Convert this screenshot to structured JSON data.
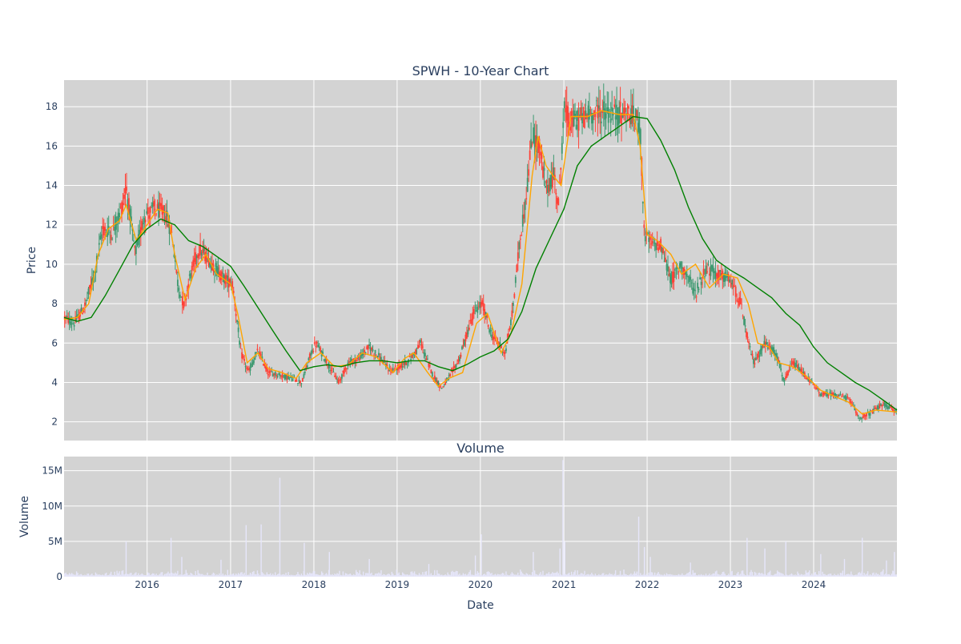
{
  "chart_data": [
    {
      "type": "candlestick",
      "title": "SPWH - 10-Year Chart",
      "xlabel": "",
      "ylabel": "Price",
      "ylim": [
        1.05,
        19.35
      ],
      "yticks": [
        2,
        4,
        6,
        8,
        10,
        12,
        14,
        16,
        18
      ],
      "grid": true,
      "legend": "none",
      "colors": {
        "plot_bg": "#d3d3d3",
        "grid": "#ffffff",
        "up": "#3d9970",
        "down": "#ff4136",
        "ma_short": "#ffa500",
        "ma_long": "#008000"
      },
      "price_trend": {
        "x": [
          "2015-01-02",
          "2015-02-15",
          "2015-04-01",
          "2015-05-15",
          "2015-06-20",
          "2015-08-01",
          "2015-09-15",
          "2015-10-01",
          "2015-11-10",
          "2015-12-20",
          "2016-02-01",
          "2016-03-20",
          "2016-04-20",
          "2016-05-15",
          "2016-06-10",
          "2016-07-10",
          "2016-08-15",
          "2016-10-01",
          "2016-12-01",
          "2017-01-10",
          "2017-02-15",
          "2017-03-20",
          "2017-05-01",
          "2017-06-15",
          "2017-08-01",
          "2017-10-01",
          "2017-11-10",
          "2017-12-20",
          "2018-01-10",
          "2018-03-01",
          "2018-04-20",
          "2018-06-01",
          "2018-07-15",
          "2018-09-01",
          "2018-10-15",
          "2018-12-01",
          "2019-01-15",
          "2019-03-01",
          "2019-04-15",
          "2019-06-01",
          "2019-07-15",
          "2019-08-20",
          "2019-10-01",
          "2019-12-01",
          "2020-01-10",
          "2020-02-15",
          "2020-03-20",
          "2020-04-20",
          "2020-05-20",
          "2020-06-20",
          "2020-07-20",
          "2020-08-15",
          "2020-09-15",
          "2020-10-15",
          "2020-11-20",
          "2020-12-10",
          "2020-12-31",
          "2021-02-01",
          "2021-04-01",
          "2021-06-01",
          "2021-08-01",
          "2021-10-01",
          "2021-11-20",
          "2021-12-01",
          "2021-12-20",
          "2022-01-20",
          "2022-03-01",
          "2022-04-15",
          "2022-06-01",
          "2022-08-01",
          "2022-09-15",
          "2022-11-01",
          "2023-01-01",
          "2023-02-15",
          "2023-03-20",
          "2023-04-15",
          "2023-06-01",
          "2023-07-20",
          "2023-08-25",
          "2023-10-01",
          "2023-12-01",
          "2024-02-01",
          "2024-04-01",
          "2024-06-01",
          "2024-07-20",
          "2024-09-01",
          "2024-11-01",
          "2024-12-31"
        ],
        "y": [
          7.3,
          7.0,
          7.8,
          9.5,
          11.8,
          11.6,
          13.0,
          14.0,
          10.5,
          12.5,
          12.8,
          12.6,
          11.5,
          9.0,
          7.9,
          9.5,
          10.8,
          10.2,
          9.3,
          9.0,
          5.5,
          4.5,
          5.6,
          4.5,
          4.4,
          4.2,
          4.0,
          5.5,
          6.0,
          5.0,
          4.0,
          5.0,
          5.2,
          5.8,
          5.3,
          4.6,
          4.8,
          5.2,
          6.0,
          4.5,
          3.7,
          4.3,
          5.2,
          7.5,
          8.0,
          6.5,
          6.0,
          5.5,
          7.5,
          11.0,
          13.5,
          16.5,
          16.0,
          13.8,
          14.5,
          13.0,
          17.8,
          17.2,
          17.5,
          17.8,
          17.6,
          17.7,
          17.3,
          17.0,
          11.5,
          11.0,
          11.0,
          9.2,
          10.0,
          8.5,
          9.8,
          9.5,
          9.2,
          8.0,
          6.0,
          5.0,
          6.0,
          5.5,
          4.0,
          5.0,
          4.3,
          3.4,
          3.4,
          3.2,
          2.2,
          2.4,
          2.9,
          2.5
        ]
      },
      "moving_averages": [
        {
          "color": "orange",
          "x": [
            "2015-01-02",
            "2015-03-01",
            "2015-04-20",
            "2015-06-01",
            "2015-07-15",
            "2015-09-01",
            "2015-10-01",
            "2015-11-15",
            "2016-01-01",
            "2016-02-15",
            "2016-04-01",
            "2016-05-01",
            "2016-06-15",
            "2016-08-01",
            "2016-09-15",
            "2016-11-01",
            "2017-01-01",
            "2017-02-01",
            "2017-03-15",
            "2017-05-01",
            "2017-06-15",
            "2017-08-15",
            "2017-10-15",
            "2017-12-01",
            "2018-02-01",
            "2018-04-01",
            "2018-06-01",
            "2018-08-01",
            "2018-10-01",
            "2018-12-15",
            "2019-02-01",
            "2019-03-15",
            "2019-05-15",
            "2019-07-01",
            "2019-08-15",
            "2019-10-15",
            "2019-12-15",
            "2020-02-01",
            "2020-04-01",
            "2020-05-15",
            "2020-07-01",
            "2020-08-15",
            "2020-09-10",
            "2020-10-15",
            "2020-11-15",
            "2020-12-20",
            "2021-02-01",
            "2021-04-15",
            "2021-06-15",
            "2021-09-01",
            "2021-11-01",
            "2021-12-01",
            "2022-01-01",
            "2022-02-15",
            "2022-04-15",
            "2022-06-01",
            "2022-08-01",
            "2022-10-01",
            "2022-12-01",
            "2023-02-01",
            "2023-03-20",
            "2023-05-01",
            "2023-06-20",
            "2023-08-01",
            "2023-10-01",
            "2023-12-01",
            "2024-02-01",
            "2024-04-01",
            "2024-06-01",
            "2024-08-01",
            "2024-10-01",
            "2024-12-31"
          ],
          "y": [
            7.2,
            7.3,
            8.0,
            10.5,
            11.8,
            12.2,
            13.0,
            11.2,
            12.0,
            12.8,
            12.6,
            10.5,
            8.2,
            9.8,
            10.5,
            9.5,
            9.0,
            7.5,
            5.0,
            5.5,
            4.7,
            4.5,
            4.2,
            5.0,
            5.5,
            4.8,
            4.9,
            5.5,
            5.3,
            4.5,
            5.2,
            5.5,
            4.5,
            3.8,
            4.2,
            4.5,
            7.0,
            7.5,
            5.5,
            6.5,
            9.0,
            14.5,
            16.5,
            15.0,
            14.5,
            14.0,
            17.5,
            17.5,
            17.8,
            17.6,
            17.6,
            16.0,
            11.5,
            11.2,
            10.5,
            9.5,
            10.0,
            8.8,
            9.5,
            9.3,
            8.0,
            6.0,
            5.8,
            5.0,
            4.8,
            4.3,
            3.6,
            3.3,
            3.0,
            2.4,
            2.6,
            2.5
          ]
        },
        {
          "color": "green",
          "x": [
            "2015-01-02",
            "2015-03-01",
            "2015-05-01",
            "2015-07-01",
            "2015-09-01",
            "2015-11-01",
            "2016-01-01",
            "2016-03-01",
            "2016-05-01",
            "2016-07-01",
            "2016-09-01",
            "2016-11-01",
            "2017-01-01",
            "2017-03-01",
            "2017-05-01",
            "2017-07-01",
            "2017-09-01",
            "2017-11-01",
            "2018-01-01",
            "2018-03-01",
            "2018-05-01",
            "2018-07-01",
            "2018-09-01",
            "2018-11-01",
            "2019-01-01",
            "2019-03-01",
            "2019-05-01",
            "2019-07-01",
            "2019-09-01",
            "2019-11-01",
            "2020-01-01",
            "2020-03-01",
            "2020-05-01",
            "2020-07-01",
            "2020-09-01",
            "2020-11-01",
            "2021-01-01",
            "2021-03-01",
            "2021-05-01",
            "2021-07-01",
            "2021-09-01",
            "2021-11-01",
            "2022-01-01",
            "2022-03-01",
            "2022-05-01",
            "2022-07-01",
            "2022-09-01",
            "2022-11-01",
            "2023-01-01",
            "2023-03-01",
            "2023-05-01",
            "2023-07-01",
            "2023-09-01",
            "2023-11-01",
            "2024-01-01",
            "2024-03-01",
            "2024-05-01",
            "2024-07-01",
            "2024-09-01",
            "2024-11-01",
            "2024-12-31"
          ],
          "y": [
            7.3,
            7.1,
            7.3,
            8.4,
            9.7,
            11.0,
            11.8,
            12.3,
            12.0,
            11.2,
            10.9,
            10.4,
            9.9,
            8.9,
            7.8,
            6.7,
            5.6,
            4.6,
            4.8,
            4.9,
            4.8,
            5.0,
            5.1,
            5.1,
            5.0,
            5.1,
            5.1,
            4.8,
            4.6,
            4.9,
            5.3,
            5.6,
            6.2,
            7.6,
            9.8,
            11.3,
            12.8,
            15.0,
            16.0,
            16.5,
            17.0,
            17.5,
            17.4,
            16.3,
            14.8,
            12.9,
            11.3,
            10.2,
            9.7,
            9.3,
            8.8,
            8.3,
            7.5,
            6.9,
            5.8,
            5.0,
            4.5,
            4.0,
            3.6,
            3.1,
            2.6
          ]
        }
      ]
    },
    {
      "type": "bar",
      "title": "Volume",
      "xlabel": "Date",
      "ylabel": "Volume",
      "ylim": [
        0,
        17000000
      ],
      "yticks": [
        0,
        5000000,
        10000000,
        15000000
      ],
      "ytick_labels": [
        "0",
        "5M",
        "10M",
        "15M"
      ],
      "xticks": [
        "2016-01-01",
        "2017-01-01",
        "2018-01-01",
        "2019-01-01",
        "2020-01-01",
        "2021-01-01",
        "2022-01-01",
        "2023-01-01",
        "2024-01-01"
      ],
      "xtick_labels": [
        "2016",
        "2017",
        "2018",
        "2019",
        "2020",
        "2021",
        "2022",
        "2023",
        "2024"
      ],
      "xlim": [
        "2015-01-02",
        "2024-12-31"
      ],
      "bar_color": "#e6e6fa",
      "spikes": [
        {
          "x": "2015-10-01",
          "v": 5000000
        },
        {
          "x": "2016-04-15",
          "v": 5500000
        },
        {
          "x": "2016-06-01",
          "v": 2800000
        },
        {
          "x": "2016-11-20",
          "v": 2400000
        },
        {
          "x": "2017-03-10",
          "v": 7300000
        },
        {
          "x": "2017-05-15",
          "v": 7400000
        },
        {
          "x": "2017-08-05",
          "v": 14000000
        },
        {
          "x": "2017-11-20",
          "v": 4800000
        },
        {
          "x": "2018-03-10",
          "v": 3500000
        },
        {
          "x": "2018-09-01",
          "v": 2500000
        },
        {
          "x": "2019-05-20",
          "v": 1800000
        },
        {
          "x": "2019-12-10",
          "v": 3000000
        },
        {
          "x": "2020-01-05",
          "v": 6000000
        },
        {
          "x": "2020-08-20",
          "v": 3500000
        },
        {
          "x": "2020-12-15",
          "v": 4000000
        },
        {
          "x": "2020-12-28",
          "v": 16500000
        },
        {
          "x": "2021-01-05",
          "v": 5000000
        },
        {
          "x": "2021-11-25",
          "v": 8500000
        },
        {
          "x": "2021-12-20",
          "v": 4200000
        },
        {
          "x": "2022-01-15",
          "v": 2800000
        },
        {
          "x": "2022-07-10",
          "v": 2000000
        },
        {
          "x": "2023-03-15",
          "v": 5500000
        },
        {
          "x": "2023-06-01",
          "v": 4000000
        },
        {
          "x": "2023-09-01",
          "v": 5000000
        },
        {
          "x": "2024-02-01",
          "v": 3200000
        },
        {
          "x": "2024-05-15",
          "v": 2500000
        },
        {
          "x": "2024-08-01",
          "v": 5500000
        },
        {
          "x": "2024-11-15",
          "v": 2300000
        },
        {
          "x": "2024-12-20",
          "v": 3500000
        }
      ]
    }
  ]
}
